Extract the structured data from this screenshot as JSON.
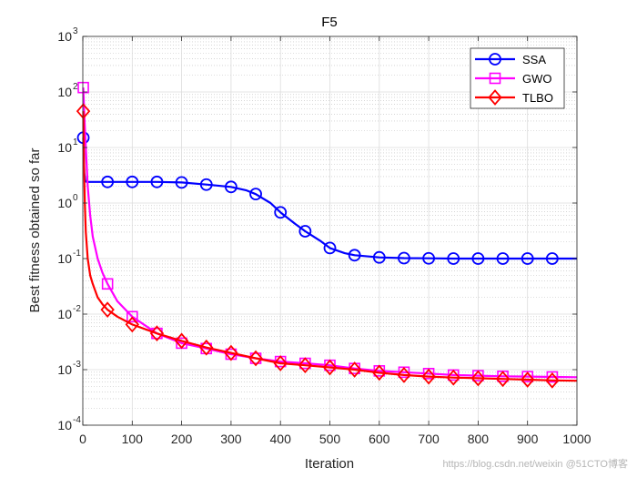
{
  "chart_data": {
    "type": "line",
    "title": "F5",
    "xlabel": "Iteration",
    "ylabel": "Best fitness obtained so far",
    "xlim": [
      0,
      1000
    ],
    "ylim": [
      0.0001,
      1000
    ],
    "yscale": "log",
    "grid": true,
    "legend_position": "top-right",
    "x_ticks": [
      0,
      100,
      200,
      300,
      400,
      500,
      600,
      700,
      800,
      900,
      1000
    ],
    "y_ticks": [
      {
        "value": 0.0001,
        "base": "10",
        "exp": "-4"
      },
      {
        "value": 0.001,
        "base": "10",
        "exp": "-3"
      },
      {
        "value": 0.01,
        "base": "10",
        "exp": "-2"
      },
      {
        "value": 0.1,
        "base": "10",
        "exp": "-1"
      },
      {
        "value": 1,
        "base": "10",
        "exp": "0"
      },
      {
        "value": 10,
        "base": "10",
        "exp": "1"
      },
      {
        "value": 100,
        "base": "10",
        "exp": "2"
      },
      {
        "value": 1000,
        "base": "10",
        "exp": "3"
      }
    ],
    "series": [
      {
        "name": "SSA",
        "color": "#0000ff",
        "marker": "circle",
        "x": [
          1,
          2,
          3,
          5,
          8,
          15,
          50,
          100,
          150,
          200,
          250,
          300,
          330,
          350,
          380,
          400,
          430,
          450,
          480,
          500,
          530,
          550,
          600,
          650,
          700,
          750,
          800,
          850,
          900,
          950,
          1000
        ],
        "values": [
          15,
          8,
          3.5,
          2.5,
          2.4,
          2.4,
          2.4,
          2.4,
          2.4,
          2.35,
          2.15,
          1.95,
          1.7,
          1.45,
          1.0,
          0.68,
          0.42,
          0.31,
          0.21,
          0.155,
          0.125,
          0.115,
          0.105,
          0.102,
          0.101,
          0.1,
          0.1,
          0.1,
          0.1,
          0.1,
          0.1
        ],
        "markers_x": [
          1,
          50,
          100,
          150,
          200,
          250,
          300,
          350,
          400,
          450,
          500,
          550,
          600,
          650,
          700,
          750,
          800,
          850,
          900,
          950
        ],
        "markers_y": [
          15,
          2.4,
          2.4,
          2.4,
          2.35,
          2.15,
          1.95,
          1.45,
          0.68,
          0.31,
          0.155,
          0.115,
          0.105,
          0.102,
          0.101,
          0.1,
          0.1,
          0.1,
          0.1,
          0.1
        ]
      },
      {
        "name": "GWO",
        "color": "#ff00ff",
        "marker": "square",
        "x": [
          1,
          3,
          6,
          10,
          15,
          20,
          30,
          40,
          50,
          70,
          100,
          150,
          200,
          250,
          300,
          350,
          400,
          450,
          500,
          550,
          600,
          650,
          700,
          750,
          800,
          850,
          900,
          950,
          1000
        ],
        "values": [
          120,
          40,
          10,
          2,
          0.6,
          0.25,
          0.1,
          0.055,
          0.035,
          0.017,
          0.009,
          0.0045,
          0.003,
          0.0024,
          0.0019,
          0.0016,
          0.0014,
          0.0013,
          0.0012,
          0.00105,
          0.00095,
          0.0009,
          0.00085,
          0.0008,
          0.00078,
          0.00076,
          0.00075,
          0.00074,
          0.00073
        ],
        "markers_x": [
          1,
          50,
          100,
          150,
          200,
          250,
          300,
          350,
          400,
          450,
          500,
          550,
          600,
          650,
          700,
          750,
          800,
          850,
          900,
          950
        ],
        "markers_y": [
          120,
          0.035,
          0.009,
          0.0045,
          0.003,
          0.0024,
          0.0019,
          0.0016,
          0.0014,
          0.0013,
          0.0012,
          0.00105,
          0.00095,
          0.0009,
          0.00085,
          0.0008,
          0.00078,
          0.00076,
          0.00075,
          0.00074
        ]
      },
      {
        "name": "TLBO",
        "color": "#ff0000",
        "marker": "diamond",
        "x": [
          1,
          2,
          4,
          6,
          10,
          15,
          20,
          30,
          40,
          50,
          70,
          100,
          150,
          200,
          250,
          300,
          350,
          400,
          450,
          500,
          550,
          600,
          650,
          700,
          750,
          800,
          850,
          900,
          950,
          1000
        ],
        "values": [
          45,
          8,
          1,
          0.3,
          0.1,
          0.05,
          0.035,
          0.02,
          0.015,
          0.012,
          0.009,
          0.0065,
          0.0045,
          0.0033,
          0.0025,
          0.002,
          0.0016,
          0.0013,
          0.0012,
          0.0011,
          0.001,
          0.00088,
          0.0008,
          0.00075,
          0.00072,
          0.0007,
          0.00068,
          0.00066,
          0.00064,
          0.00063
        ],
        "markers_x": [
          1,
          50,
          100,
          150,
          200,
          250,
          300,
          350,
          400,
          450,
          500,
          550,
          600,
          650,
          700,
          750,
          800,
          850,
          900,
          950
        ],
        "markers_y": [
          45,
          0.012,
          0.0065,
          0.0045,
          0.0033,
          0.0025,
          0.002,
          0.0016,
          0.0013,
          0.0012,
          0.0011,
          0.001,
          0.00088,
          0.0008,
          0.00075,
          0.00072,
          0.0007,
          0.00068,
          0.00066,
          0.00064
        ]
      }
    ]
  },
  "watermark": "https://blog.csdn.net/weixin @51CTO博客"
}
